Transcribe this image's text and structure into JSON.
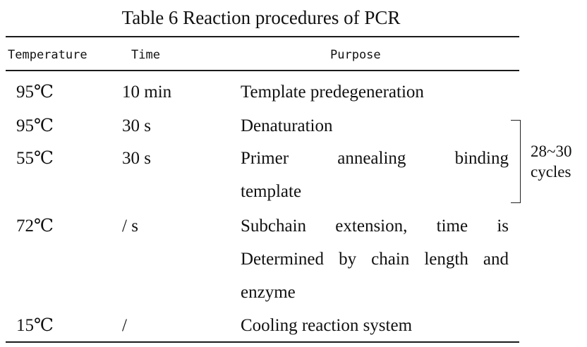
{
  "caption": "Table 6 Reaction procedures of PCR",
  "headers": {
    "temperature": "Temperature",
    "time": "Time",
    "purpose": "Purpose"
  },
  "rows": [
    {
      "temperature": "95℃",
      "time": "10 min",
      "purpose_lines": [
        "Template predegeneration"
      ]
    },
    {
      "temperature": "95℃",
      "time": "30 s",
      "purpose_lines": [
        "Denaturation"
      ]
    },
    {
      "temperature": "55℃",
      "time": "30 s",
      "purpose_lines": [
        "Primer annealing binding",
        "template"
      ]
    },
    {
      "temperature": "72℃",
      "time": "/ s",
      "purpose_lines": [
        "Subchain extension, time is",
        "Determined by chain length and",
        "enzyme"
      ]
    },
    {
      "temperature": "15℃",
      "time": "/",
      "purpose_lines": [
        "Cooling reaction system"
      ]
    }
  ],
  "cycles_note": {
    "range": "28~30",
    "unit": "cycles"
  }
}
